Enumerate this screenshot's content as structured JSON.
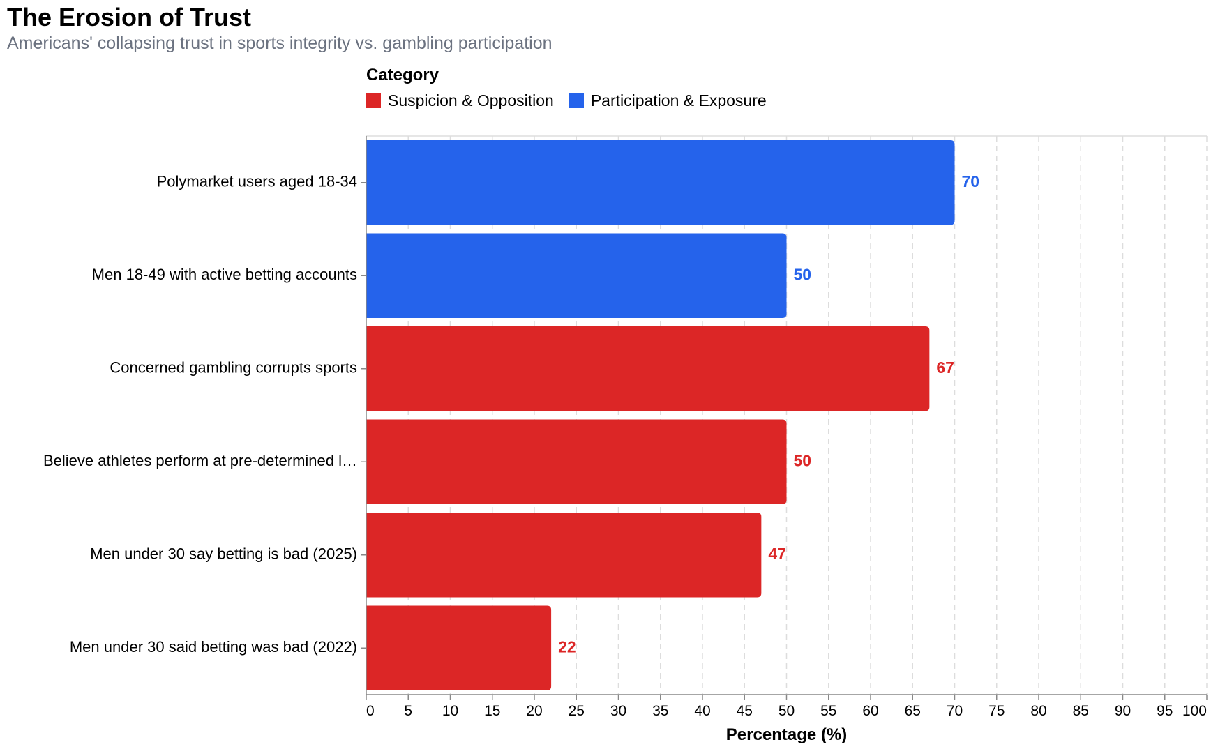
{
  "colors": {
    "suspicion": "#dc2626",
    "participation": "#2563eb",
    "axis": "#888888",
    "grid": "#dddddd",
    "text": "#000000"
  },
  "title": "The Erosion of Trust",
  "subtitle": "Americans' collapsing trust in sports integrity vs. gambling participation",
  "legend": {
    "title": "Category",
    "items": [
      {
        "label": "Suspicion & Opposition",
        "key": "suspicion"
      },
      {
        "label": "Participation & Exposure",
        "key": "participation"
      }
    ]
  },
  "chart_data": {
    "type": "bar",
    "orientation": "horizontal",
    "title": "The Erosion of Trust",
    "subtitle": "Americans' collapsing trust in sports integrity vs. gambling participation",
    "xlabel": "Percentage (%)",
    "ylabel": "",
    "xlim": [
      0,
      100
    ],
    "xticks": [
      0,
      5,
      10,
      15,
      20,
      25,
      30,
      35,
      40,
      45,
      50,
      55,
      60,
      65,
      70,
      75,
      80,
      85,
      90,
      95,
      100
    ],
    "grid": true,
    "legend_position": "top",
    "categories": [
      "Polymarket users aged 18-34",
      "Men 18-49 with active betting accounts",
      "Concerned gambling corrupts sports",
      "Believe athletes perform at pre-determined l…",
      "Men under 30 say betting is bad (2025)",
      "Men under 30 said betting was bad (2022)"
    ],
    "values": [
      70,
      50,
      67,
      50,
      47,
      22
    ],
    "groups": [
      "participation",
      "participation",
      "suspicion",
      "suspicion",
      "suspicion",
      "suspicion"
    ]
  }
}
